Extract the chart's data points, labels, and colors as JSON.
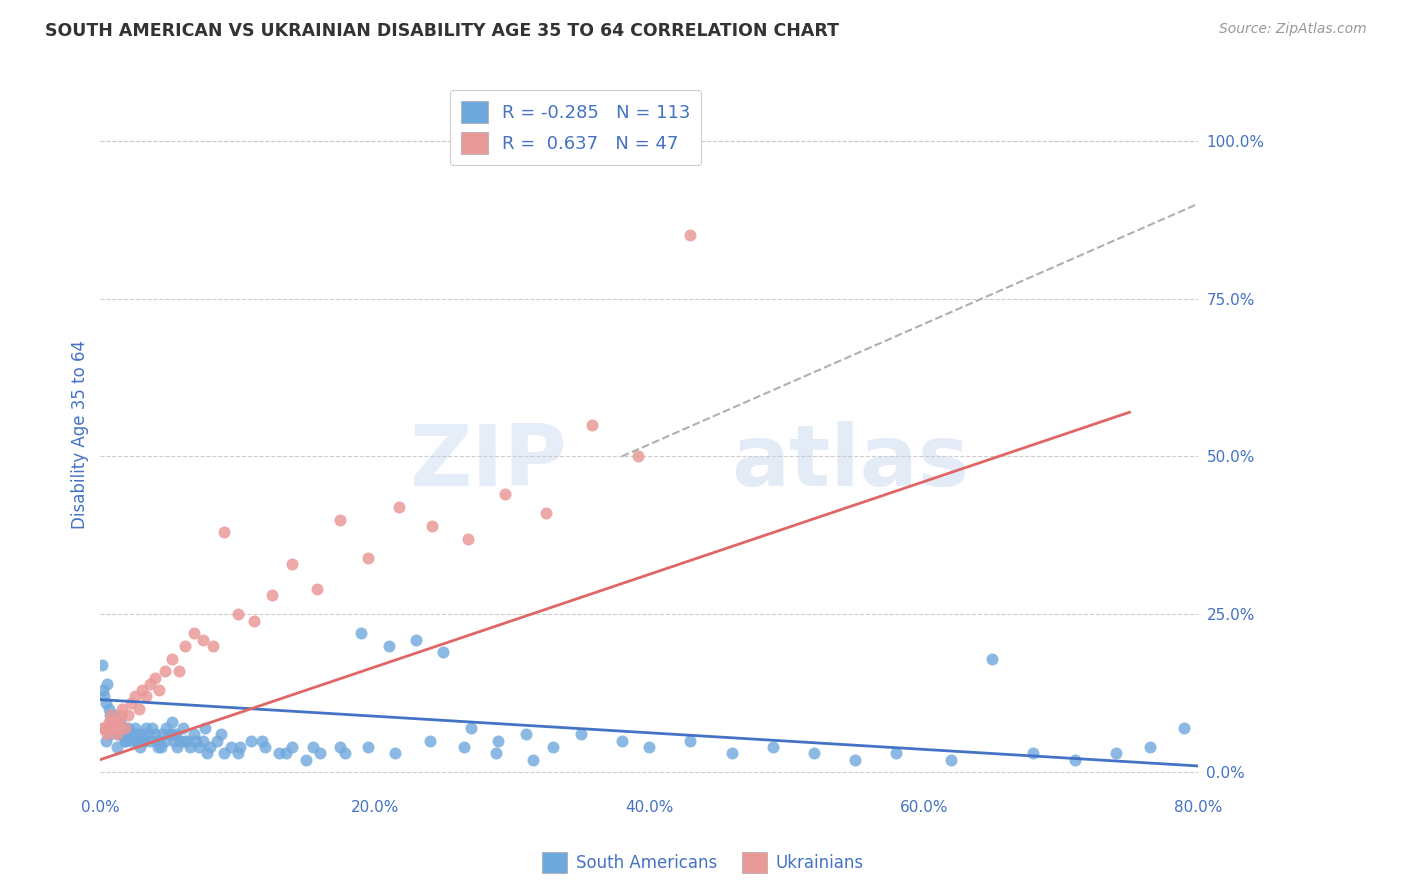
{
  "title": "SOUTH AMERICAN VS UKRAINIAN DISABILITY AGE 35 TO 64 CORRELATION CHART",
  "source": "Source: ZipAtlas.com",
  "ylabel": "Disability Age 35 to 64",
  "watermark_zip": "ZIP",
  "watermark_atlas": "atlas",
  "xlim": [
    0.0,
    0.8
  ],
  "ylim": [
    -0.03,
    1.1
  ],
  "xticks": [
    0.0,
    0.1,
    0.2,
    0.3,
    0.4,
    0.5,
    0.6,
    0.7,
    0.8
  ],
  "xticklabels": [
    "0.0%",
    "",
    "20.0%",
    "",
    "40.0%",
    "",
    "60.0%",
    "",
    "80.0%"
  ],
  "yticks_right": [
    0.0,
    0.25,
    0.5,
    0.75,
    1.0
  ],
  "yticklabels_right": [
    "0.0%",
    "25.0%",
    "50.0%",
    "75.0%",
    "100.0%"
  ],
  "blue_color": "#6fa8dc",
  "pink_color": "#ea9999",
  "blue_line_color": "#4472c4",
  "pink_line_color": "#e06666",
  "diag_line_color": "#b0b0b0",
  "text_color": "#4472c4",
  "legend_r_blue": "-0.285",
  "legend_n_blue": "113",
  "legend_r_pink": "0.637",
  "legend_n_pink": "47",
  "legend_label_blue": "South Americans",
  "legend_label_pink": "Ukrainians",
  "blue_trend_x": [
    0.0,
    0.8
  ],
  "blue_trend_y": [
    0.115,
    0.01
  ],
  "pink_trend_x": [
    0.0,
    0.75
  ],
  "pink_trend_y": [
    0.02,
    0.57
  ],
  "diag_trend_x": [
    0.38,
    0.8
  ],
  "diag_trend_y": [
    0.5,
    0.9
  ],
  "blue_scatter_x": [
    0.001,
    0.002,
    0.003,
    0.004,
    0.005,
    0.006,
    0.007,
    0.008,
    0.009,
    0.01,
    0.011,
    0.012,
    0.013,
    0.014,
    0.015,
    0.016,
    0.017,
    0.018,
    0.019,
    0.02,
    0.021,
    0.022,
    0.023,
    0.025,
    0.026,
    0.027,
    0.028,
    0.029,
    0.03,
    0.031,
    0.033,
    0.035,
    0.036,
    0.038,
    0.04,
    0.041,
    0.042,
    0.043,
    0.045,
    0.047,
    0.048,
    0.05,
    0.052,
    0.054,
    0.055,
    0.056,
    0.058,
    0.06,
    0.062,
    0.065,
    0.068,
    0.07,
    0.072,
    0.075,
    0.078,
    0.08,
    0.085,
    0.09,
    0.095,
    0.1,
    0.11,
    0.12,
    0.13,
    0.14,
    0.15,
    0.16,
    0.175,
    0.19,
    0.21,
    0.23,
    0.25,
    0.27,
    0.29,
    0.31,
    0.33,
    0.35,
    0.38,
    0.4,
    0.43,
    0.46,
    0.49,
    0.52,
    0.55,
    0.58,
    0.62,
    0.65,
    0.68,
    0.71,
    0.74,
    0.765,
    0.79,
    0.004,
    0.007,
    0.012,
    0.018,
    0.024,
    0.032,
    0.044,
    0.053,
    0.063,
    0.076,
    0.088,
    0.102,
    0.118,
    0.135,
    0.155,
    0.178,
    0.195,
    0.215,
    0.24,
    0.265,
    0.288,
    0.315
  ],
  "blue_scatter_y": [
    0.17,
    0.13,
    0.12,
    0.11,
    0.14,
    0.1,
    0.09,
    0.08,
    0.07,
    0.09,
    0.08,
    0.07,
    0.06,
    0.08,
    0.07,
    0.06,
    0.07,
    0.05,
    0.06,
    0.07,
    0.06,
    0.05,
    0.06,
    0.07,
    0.05,
    0.06,
    0.05,
    0.04,
    0.06,
    0.05,
    0.07,
    0.06,
    0.05,
    0.07,
    0.06,
    0.05,
    0.04,
    0.05,
    0.06,
    0.05,
    0.07,
    0.06,
    0.08,
    0.05,
    0.06,
    0.04,
    0.05,
    0.07,
    0.05,
    0.04,
    0.06,
    0.05,
    0.04,
    0.05,
    0.03,
    0.04,
    0.05,
    0.03,
    0.04,
    0.03,
    0.05,
    0.04,
    0.03,
    0.04,
    0.02,
    0.03,
    0.04,
    0.22,
    0.2,
    0.21,
    0.19,
    0.07,
    0.05,
    0.06,
    0.04,
    0.06,
    0.05,
    0.04,
    0.05,
    0.03,
    0.04,
    0.03,
    0.02,
    0.03,
    0.02,
    0.18,
    0.03,
    0.02,
    0.03,
    0.04,
    0.07,
    0.05,
    0.06,
    0.04,
    0.05,
    0.06,
    0.05,
    0.04,
    0.06,
    0.05,
    0.07,
    0.06,
    0.04,
    0.05,
    0.03,
    0.04,
    0.03,
    0.04,
    0.03,
    0.05,
    0.04,
    0.03,
    0.02
  ],
  "pink_scatter_x": [
    0.001,
    0.003,
    0.005,
    0.006,
    0.007,
    0.008,
    0.009,
    0.01,
    0.011,
    0.012,
    0.013,
    0.014,
    0.015,
    0.016,
    0.018,
    0.02,
    0.022,
    0.025,
    0.028,
    0.03,
    0.033,
    0.036,
    0.04,
    0.043,
    0.047,
    0.052,
    0.057,
    0.062,
    0.068,
    0.075,
    0.082,
    0.09,
    0.1,
    0.112,
    0.125,
    0.14,
    0.158,
    0.175,
    0.195,
    0.218,
    0.242,
    0.268,
    0.295,
    0.325,
    0.358,
    0.392,
    0.43
  ],
  "pink_scatter_y": [
    0.07,
    0.07,
    0.06,
    0.08,
    0.07,
    0.09,
    0.08,
    0.07,
    0.08,
    0.06,
    0.08,
    0.07,
    0.09,
    0.1,
    0.07,
    0.09,
    0.11,
    0.12,
    0.1,
    0.13,
    0.12,
    0.14,
    0.15,
    0.13,
    0.16,
    0.18,
    0.16,
    0.2,
    0.22,
    0.21,
    0.2,
    0.38,
    0.25,
    0.24,
    0.28,
    0.33,
    0.29,
    0.4,
    0.34,
    0.42,
    0.39,
    0.37,
    0.44,
    0.41,
    0.55,
    0.5,
    0.85
  ]
}
